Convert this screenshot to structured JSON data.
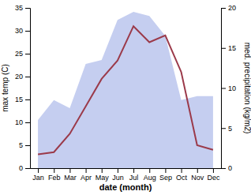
{
  "chart_data": {
    "type": "line",
    "categories": [
      "Jan",
      "Feb",
      "Mar",
      "Apr",
      "May",
      "Jun",
      "Jul",
      "Aug",
      "Sep",
      "Oct",
      "Nov",
      "Dec"
    ],
    "xlabel": "date (month)",
    "ylabel": "max temp (C)",
    "y2label": "med. precipitation (kg/m2)",
    "ylim": [
      0,
      35
    ],
    "yticks": [
      0,
      5,
      10,
      15,
      20,
      25,
      30,
      35
    ],
    "y2lim": [
      0,
      20
    ],
    "y2ticks": [
      0,
      5,
      10,
      15,
      20
    ],
    "grid": false,
    "series": [
      {
        "type": "area",
        "axis": "y2",
        "color": "#c5cef0",
        "values": [
          6.0,
          8.5,
          7.5,
          13.0,
          13.5,
          18.5,
          19.5,
          19.0,
          16.5,
          8.5,
          9.0,
          9.0
        ]
      },
      {
        "type": "line",
        "color": "#9b3a4a",
        "values": [
          3.0,
          3.5,
          7.5,
          13.5,
          19.5,
          23.5,
          31.0,
          27.5,
          29.0,
          21.0,
          5.0,
          4.0
        ]
      }
    ]
  }
}
